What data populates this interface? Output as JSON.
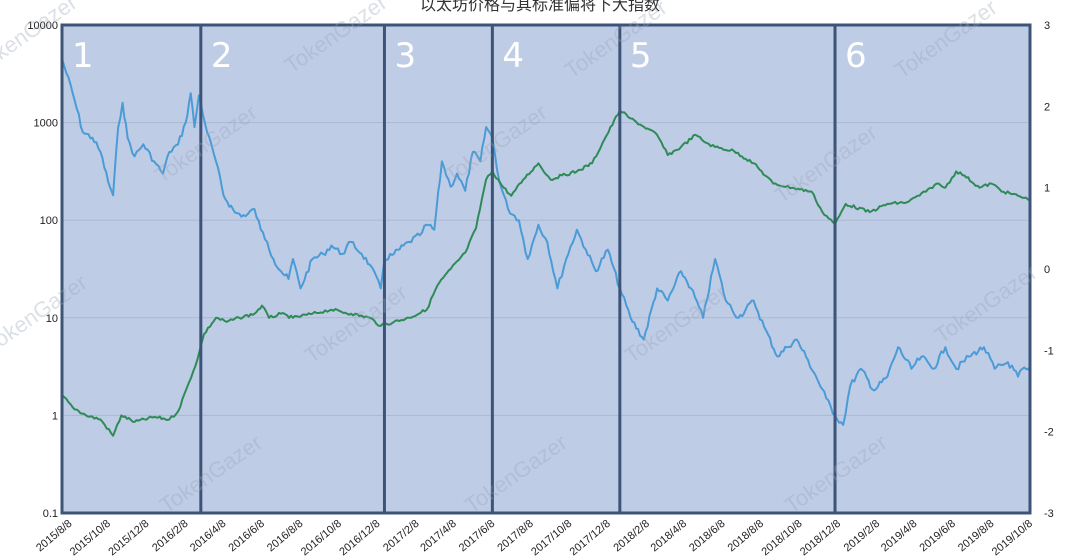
{
  "chart_data": {
    "type": "line",
    "title": "以太坊价格与其标准偏将下大指数",
    "watermark": "TokenGazer",
    "left_axis": {
      "scale": "log",
      "range": [
        0.1,
        10000
      ],
      "ticks": [
        "0.1",
        "1",
        "10",
        "100",
        "1000",
        "10000"
      ]
    },
    "right_axis": {
      "range": [
        -3,
        3
      ],
      "ticks": [
        "-3",
        "-2",
        "-1",
        "0",
        "1",
        "2",
        "3"
      ]
    },
    "x_dates": [
      "2015/8/8",
      "2015/10/8",
      "2015/12/8",
      "2016/2/8",
      "2016/4/8",
      "2016/6/8",
      "2016/8/8",
      "2016/10/8",
      "2016/12/8",
      "2017/2/8",
      "2017/4/8",
      "2017/6/8",
      "2017/8/8",
      "2017/10/8",
      "2017/12/8",
      "2018/2/8",
      "2018/4/8",
      "2018/6/8",
      "2018/8/8",
      "2018/10/8",
      "2018/12/8",
      "2019/2/8",
      "2019/4/8",
      "2019/6/8",
      "2019/8/8",
      "2019/10/8"
    ],
    "phases": [
      "1",
      "2",
      "3",
      "4",
      "5",
      "6"
    ],
    "phase_boundaries": [
      "2016/3/15",
      "2016/12/31",
      "2017/6/20",
      "2018/1/8",
      "2018/12/15"
    ],
    "grid": true,
    "colors": {
      "plot_bg": "#bfcce6",
      "index_line": "#4a9bd6",
      "price_line": "#2e8b57",
      "divider": "#3c5478",
      "gridline": "#aab8d0"
    },
    "series": [
      {
        "axis": "left",
        "color": "#4a9bd6",
        "points": [
          [
            "2015/8/8",
            4500
          ],
          [
            "2015/8/25",
            2000
          ],
          [
            "2015/9/10",
            800
          ],
          [
            "2015/9/25",
            700
          ],
          [
            "2015/10/8",
            500
          ],
          [
            "2015/10/20",
            250
          ],
          [
            "2015/10/28",
            180
          ],
          [
            "2015/11/5",
            900
          ],
          [
            "2015/11/12",
            1600
          ],
          [
            "2015/11/20",
            700
          ],
          [
            "2015/12/1",
            450
          ],
          [
            "2015/12/15",
            600
          ],
          [
            "2016/1/1",
            400
          ],
          [
            "2016/1/15",
            300
          ],
          [
            "2016/1/25",
            500
          ],
          [
            "2016/2/8",
            600
          ],
          [
            "2016/2/20",
            1000
          ],
          [
            "2016/2/28",
            2000
          ],
          [
            "2016/3/5",
            900
          ],
          [
            "2016/3/12",
            1900
          ],
          [
            "2016/3/25",
            800
          ],
          [
            "2016/4/8",
            400
          ],
          [
            "2016/4/20",
            180
          ],
          [
            "2016/5/8",
            120
          ],
          [
            "2016/5/25",
            110
          ],
          [
            "2016/6/8",
            130
          ],
          [
            "2016/6/18",
            80
          ],
          [
            "2016/6/28",
            60
          ],
          [
            "2016/7/8",
            40
          ],
          [
            "2016/7/20",
            30
          ],
          [
            "2016/8/1",
            25
          ],
          [
            "2016/8/8",
            40
          ],
          [
            "2016/8/20",
            20
          ],
          [
            "2016/9/8",
            40
          ],
          [
            "2016/9/25",
            45
          ],
          [
            "2016/10/8",
            55
          ],
          [
            "2016/10/25",
            45
          ],
          [
            "2016/11/8",
            60
          ],
          [
            "2016/11/25",
            45
          ],
          [
            "2016/12/8",
            35
          ],
          [
            "2016/12/25",
            20
          ],
          [
            "2016/12/31",
            40
          ],
          [
            "2017/1/15",
            45
          ],
          [
            "2017/2/8",
            60
          ],
          [
            "2017/2/25",
            70
          ],
          [
            "2017/3/8",
            90
          ],
          [
            "2017/3/20",
            80
          ],
          [
            "2017/4/1",
            400
          ],
          [
            "2017/4/15",
            220
          ],
          [
            "2017/4/25",
            300
          ],
          [
            "2017/5/8",
            200
          ],
          [
            "2017/5/20",
            500
          ],
          [
            "2017/6/1",
            400
          ],
          [
            "2017/6/10",
            900
          ],
          [
            "2017/6/20",
            700
          ],
          [
            "2017/7/1",
            250
          ],
          [
            "2017/7/15",
            130
          ],
          [
            "2017/8/1",
            100
          ],
          [
            "2017/8/15",
            40
          ],
          [
            "2017/9/1",
            90
          ],
          [
            "2017/9/15",
            60
          ],
          [
            "2017/10/1",
            20
          ],
          [
            "2017/10/15",
            40
          ],
          [
            "2017/11/1",
            80
          ],
          [
            "2017/11/15",
            50
          ],
          [
            "2017/12/1",
            30
          ],
          [
            "2017/12/20",
            50
          ],
          [
            "2018/1/8",
            20
          ],
          [
            "2018/1/25",
            10
          ],
          [
            "2018/2/15",
            6
          ],
          [
            "2018/3/8",
            20
          ],
          [
            "2018/3/25",
            15
          ],
          [
            "2018/4/15",
            30
          ],
          [
            "2018/5/1",
            20
          ],
          [
            "2018/5/20",
            10
          ],
          [
            "2018/6/8",
            40
          ],
          [
            "2018/6/25",
            15
          ],
          [
            "2018/7/15",
            10
          ],
          [
            "2018/8/8",
            15
          ],
          [
            "2018/8/25",
            8
          ],
          [
            "2018/9/15",
            4
          ],
          [
            "2018/9/30",
            5
          ],
          [
            "2018/10/15",
            6
          ],
          [
            "2018/10/30",
            4
          ],
          [
            "2018/11/15",
            2.5
          ],
          [
            "2018/12/1",
            1.5
          ],
          [
            "2018/12/15",
            1
          ],
          [
            "2018/12/28",
            0.8
          ],
          [
            "2019/1/8",
            2
          ],
          [
            "2019/1/25",
            3
          ],
          [
            "2019/2/15",
            1.8
          ],
          [
            "2019/3/8",
            2.5
          ],
          [
            "2019/3/25",
            5
          ],
          [
            "2019/4/15",
            3
          ],
          [
            "2019/5/1",
            4
          ],
          [
            "2019/5/20",
            3
          ],
          [
            "2019/6/8",
            5
          ],
          [
            "2019/6/25",
            3
          ],
          [
            "2019/7/15",
            4
          ],
          [
            "2019/8/8",
            5
          ],
          [
            "2019/8/25",
            3
          ],
          [
            "2019/9/15",
            3.5
          ],
          [
            "2019/10/1",
            2.5
          ],
          [
            "2019/10/8",
            3
          ],
          [
            "2019/10/20",
            2.8
          ]
        ]
      },
      {
        "axis": "right",
        "color": "#2e8b57",
        "points": [
          [
            "2015/8/8",
            -1.55
          ],
          [
            "2015/8/25",
            -1.7
          ],
          [
            "2015/9/15",
            -1.8
          ],
          [
            "2015/10/8",
            -1.85
          ],
          [
            "2015/10/28",
            -2.05
          ],
          [
            "2015/11/10",
            -1.8
          ],
          [
            "2015/12/1",
            -1.88
          ],
          [
            "2016/1/1",
            -1.82
          ],
          [
            "2016/1/25",
            -1.85
          ],
          [
            "2016/2/8",
            -1.75
          ],
          [
            "2016/2/25",
            -1.4
          ],
          [
            "2016/3/10",
            -1.1
          ],
          [
            "2016/3/20",
            -0.8
          ],
          [
            "2016/4/8",
            -0.6
          ],
          [
            "2016/4/25",
            -0.65
          ],
          [
            "2016/5/15",
            -0.6
          ],
          [
            "2016/6/8",
            -0.55
          ],
          [
            "2016/6/20",
            -0.45
          ],
          [
            "2016/7/1",
            -0.6
          ],
          [
            "2016/7/20",
            -0.55
          ],
          [
            "2016/8/8",
            -0.6
          ],
          [
            "2016/9/8",
            -0.55
          ],
          [
            "2016/10/8",
            -0.5
          ],
          [
            "2016/11/8",
            -0.55
          ],
          [
            "2016/12/8",
            -0.6
          ],
          [
            "2016/12/25",
            -0.7
          ],
          [
            "2017/1/15",
            -0.65
          ],
          [
            "2017/2/8",
            -0.6
          ],
          [
            "2017/3/8",
            -0.5
          ],
          [
            "2017/3/25",
            -0.2
          ],
          [
            "2017/4/15",
            0.0
          ],
          [
            "2017/5/8",
            0.2
          ],
          [
            "2017/5/25",
            0.5
          ],
          [
            "2017/6/10",
            1.1
          ],
          [
            "2017/6/20",
            1.2
          ],
          [
            "2017/7/8",
            1.0
          ],
          [
            "2017/7/20",
            0.9
          ],
          [
            "2017/8/8",
            1.1
          ],
          [
            "2017/9/1",
            1.3
          ],
          [
            "2017/9/20",
            1.1
          ],
          [
            "2017/10/8",
            1.15
          ],
          [
            "2017/11/1",
            1.2
          ],
          [
            "2017/11/25",
            1.3
          ],
          [
            "2017/12/15",
            1.6
          ],
          [
            "2018/1/8",
            1.95
          ],
          [
            "2018/1/25",
            1.85
          ],
          [
            "2018/2/15",
            1.75
          ],
          [
            "2018/3/8",
            1.65
          ],
          [
            "2018/3/25",
            1.4
          ],
          [
            "2018/4/15",
            1.5
          ],
          [
            "2018/5/8",
            1.65
          ],
          [
            "2018/5/25",
            1.55
          ],
          [
            "2018/6/8",
            1.5
          ],
          [
            "2018/7/8",
            1.45
          ],
          [
            "2018/8/8",
            1.3
          ],
          [
            "2018/9/8",
            1.05
          ],
          [
            "2018/10/8",
            1.0
          ],
          [
            "2018/11/8",
            0.95
          ],
          [
            "2018/11/25",
            0.7
          ],
          [
            "2018/12/15",
            0.55
          ],
          [
            "2019/1/1",
            0.8
          ],
          [
            "2019/2/8",
            0.7
          ],
          [
            "2019/3/8",
            0.8
          ],
          [
            "2019/4/8",
            0.82
          ],
          [
            "2019/5/8",
            0.95
          ],
          [
            "2019/5/25",
            1.05
          ],
          [
            "2019/6/8",
            1.0
          ],
          [
            "2019/6/25",
            1.2
          ],
          [
            "2019/7/8",
            1.15
          ],
          [
            "2019/8/1",
            1.0
          ],
          [
            "2019/8/20",
            1.05
          ],
          [
            "2019/9/8",
            0.95
          ],
          [
            "2019/10/1",
            0.9
          ],
          [
            "2019/10/20",
            0.85
          ]
        ]
      }
    ]
  }
}
